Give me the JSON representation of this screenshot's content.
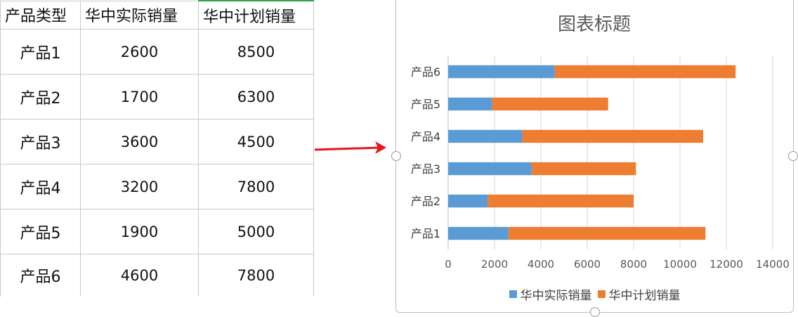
{
  "table": {
    "headers": [
      "产品类型",
      "华中实际销量",
      "华中计划销量"
    ],
    "rows": [
      [
        "产品1",
        "2600",
        "8500"
      ],
      [
        "产品2",
        "1700",
        "6300"
      ],
      [
        "产品3",
        "3600",
        "4500"
      ],
      [
        "产品4",
        "3200",
        "7800"
      ],
      [
        "产品5",
        "1900",
        "5000"
      ],
      [
        "产品6",
        "4600",
        "7800"
      ]
    ]
  },
  "arrow_color": "#e8141b",
  "chart_data": {
    "type": "bar",
    "orientation": "horizontal",
    "stacked": true,
    "title": "图表标题",
    "categories": [
      "产品1",
      "产品2",
      "产品3",
      "产品4",
      "产品5",
      "产品6"
    ],
    "series": [
      {
        "name": "华中实际销量",
        "color": "#5b9bd5",
        "values": [
          2600,
          1700,
          3600,
          3200,
          1900,
          4600
        ]
      },
      {
        "name": "华中计划销量",
        "color": "#ed7d31",
        "values": [
          8500,
          6300,
          4500,
          7800,
          5000,
          7800
        ]
      }
    ],
    "xlim": [
      0,
      14000
    ],
    "xticks": [
      0,
      2000,
      4000,
      6000,
      8000,
      10000,
      12000,
      14000
    ],
    "grid": "vertical",
    "legend": "bottom"
  }
}
